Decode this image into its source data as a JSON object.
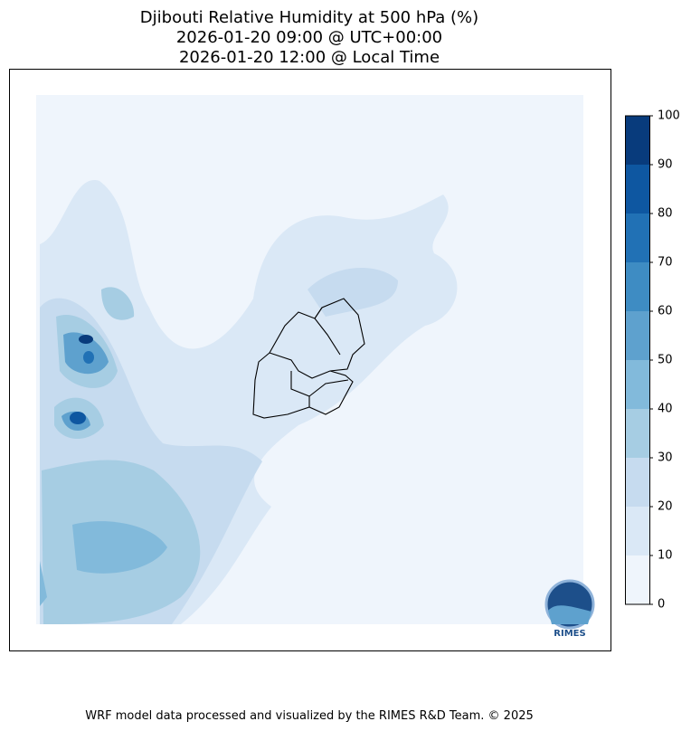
{
  "title": [
    "Djibouti Relative Humidity at 500 hPa (%)",
    "2026-01-20 09:00 @ UTC+00:00",
    "2026-01-20 12:00 @ Local Time"
  ],
  "colorbar": {
    "ticks": [
      0,
      10,
      20,
      30,
      40,
      50,
      60,
      70,
      80,
      90,
      100
    ],
    "colors": [
      "#eff5fc",
      "#dae8f6",
      "#c6dbef",
      "#a6cde3",
      "#82badb",
      "#5ea1ce",
      "#3e8cc3",
      "#2171b5",
      "#0e57a1",
      "#083b7c"
    ]
  },
  "logo": "RIMES",
  "footer": "WRF model data processed and visualized by the RIMES R&D Team. © 2025"
}
